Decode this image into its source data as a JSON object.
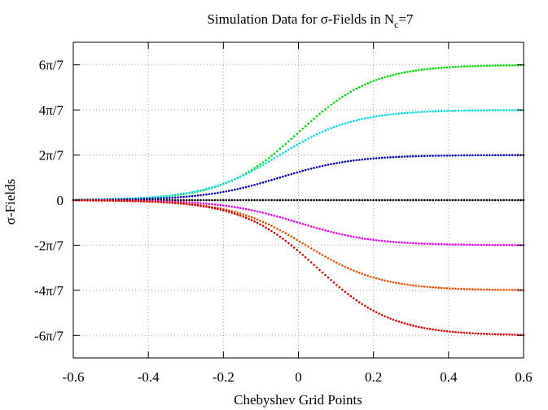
{
  "chart_data": {
    "type": "scatter",
    "title": "Simulation Data for σ-Fields in N",
    "title_subscript": "c",
    "title_suffix": "=7",
    "xlabel": "Chebyshev Grid Points",
    "ylabel": "σ-Fields",
    "xlim": [
      -0.6,
      0.6
    ],
    "ylim": [
      -7.0,
      7.0
    ],
    "y_unit": "π/7",
    "x_ticks": [
      -0.6,
      -0.4,
      -0.2,
      0,
      0.2,
      0.4,
      0.6
    ],
    "x_tick_labels": [
      "-0.6",
      "-0.4",
      "-0.2",
      "0",
      "0.2",
      "0.4",
      "0.6"
    ],
    "y_ticks": [
      -6,
      -4,
      -2,
      0,
      2,
      4,
      6
    ],
    "y_tick_labels": [
      "-6π/7",
      "-4π/7",
      "-2π/7",
      "0",
      "2π/7",
      "4π/7",
      "6π/7"
    ],
    "grid": true,
    "series": [
      {
        "color": "#00e000",
        "asymptote": 6,
        "center": 0.0,
        "rate": 10.0
      },
      {
        "color": "#00e0e0",
        "asymptote": 4,
        "center": -0.05,
        "rate": 10.0
      },
      {
        "color": "#0000c0",
        "asymptote": 2,
        "center": -0.05,
        "rate": 10.0
      },
      {
        "color": "#000000",
        "asymptote": 0,
        "center": 0.0,
        "rate": 10.0
      },
      {
        "color": "#f000f0",
        "asymptote": -2,
        "center": 0.0,
        "rate": 10.0
      },
      {
        "color": "#f05000",
        "asymptote": -4,
        "center": 0.02,
        "rate": 10.0
      },
      {
        "color": "#e00000",
        "asymptote": -6,
        "center": 0.05,
        "rate": 10.0
      }
    ],
    "points_per_series": 160
  }
}
